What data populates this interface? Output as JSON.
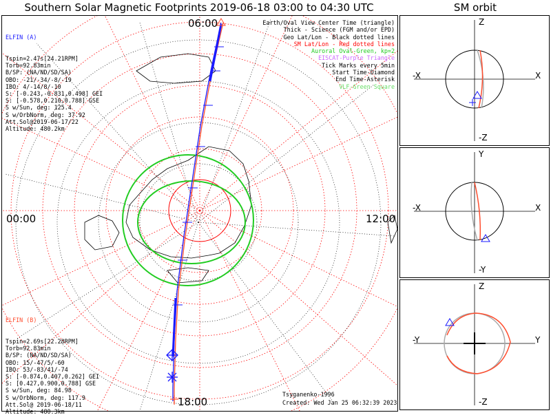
{
  "title": "Southern Solar Magnetic Footprints 2019-06-18 03:00 to 04:30 UTC",
  "orbit_title": "SM orbit",
  "map_labels": {
    "top": "06:00",
    "left": "00:00",
    "right": "12:00",
    "bottom": "18:00"
  },
  "elfin_a": {
    "header": "ELFIN (A)",
    "color": "#1a1aff",
    "lines": [
      "Tspin=2.47s[24.21RPM]",
      "Torb=92.83min",
      "B/SP: (NA/ND/SD/SA)",
      "OBO: -21/-34/-8/-19",
      "IBO: 4/-14/8/-10",
      "S: [-0.243,-0.831,0.498] GEI",
      "S: [-0.578,0.210,0.788] GSE",
      "S w/Sun, deg: 125.4",
      "S w/OrbNorm, deg: 37.92",
      "Att.Sol@2019-06-17/22",
      "Altitude: 480.2km"
    ]
  },
  "elfin_b": {
    "header": "ELFIN (B)",
    "color": "#ff4d2e",
    "lines": [
      "Tspin=2.69s[22.28RPM]",
      "Torb=92.83min",
      "B/SP: (NA/ND/SD/SA)",
      "OBO: 15/-47/5/-60",
      "IBO: 53/-83/41/-74",
      "S: [-0.874,0.407,0.262] GEI",
      "S: [0.427,0.900,0.788] GSE",
      "S w/Sun, deg: 84.98",
      "S w/OrbNorm, deg: 117.9",
      "Att.Sol@ 2019-06-18/11",
      "Altitude: 480.3km"
    ]
  },
  "legend": [
    {
      "text": "Earth/Oval View Center Time (triangle)",
      "color": "#000000"
    },
    {
      "text": "Thick - Science (FGM and/or EPD)",
      "color": "#000000"
    },
    {
      "text": "Geo Lat/Lon - Black dotted lines",
      "color": "#000000"
    },
    {
      "text": "SM Lat/Lon - Red dotted lines",
      "color": "#ff0000"
    },
    {
      "text": "Auroral Oval-Green, kp=2",
      "color": "#22cc22"
    },
    {
      "text": "EISCAT-Purple Triangle",
      "color": "#cc66ff"
    },
    {
      "text": "Tick Marks every 5min",
      "color": "#000000"
    },
    {
      "text": "Start Time-Diamond",
      "color": "#000000"
    },
    {
      "text": "End Time-Asterisk",
      "color": "#000000"
    },
    {
      "text": "VLF-Green Square",
      "color": "#66dd66"
    }
  ],
  "credit": {
    "author": "Tsyganenko-1996",
    "created": "Created: Wed Jan 25 06:32:39 2023"
  },
  "orbit_panels": [
    {
      "top": "Z",
      "bottom": "-Z",
      "left": "-X",
      "right": "X"
    },
    {
      "top": "Y",
      "bottom": "-Y",
      "left": "-X",
      "right": "X"
    },
    {
      "top": "Z",
      "bottom": "-Z",
      "left": "-Y",
      "right": "Y"
    }
  ]
}
